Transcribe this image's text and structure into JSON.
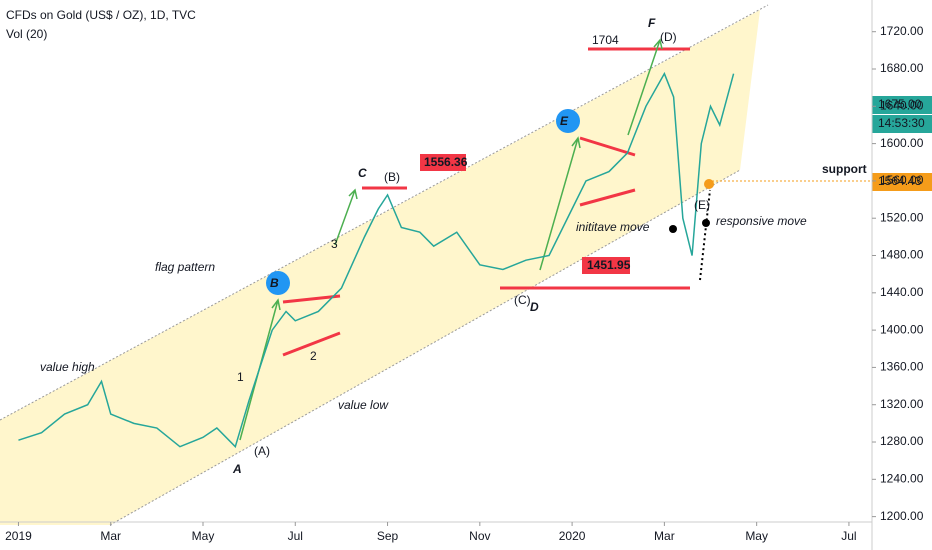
{
  "chart_data": {
    "type": "line",
    "title": "CFDs on Gold (US$ / OZ), 1D, TVC",
    "subtitle": "Vol (20)",
    "x": [
      0,
      0.5,
      1,
      1.5,
      1.8,
      2,
      2.5,
      3,
      3.5,
      4,
      4.3,
      4.7,
      5,
      5.5,
      5.8,
      6,
      6.5,
      7,
      7.5,
      7.8,
      8,
      8.3,
      8.7,
      9,
      9.5,
      10,
      10.5,
      11,
      11.5,
      12,
      12.3,
      12.8,
      13.2,
      13.6,
      14,
      14.2,
      14.4,
      14.6,
      14.8,
      15,
      15.2,
      15.5
    ],
    "series": [
      {
        "color": "#26a69a",
        "values": [
          1282,
          1290,
          1310,
          1320,
          1345,
          1310,
          1300,
          1295,
          1275,
          1285,
          1295,
          1275,
          1325,
          1400,
          1420,
          1410,
          1420,
          1445,
          1500,
          1530,
          1545,
          1510,
          1505,
          1490,
          1505,
          1470,
          1465,
          1475,
          1480,
          1530,
          1560,
          1570,
          1590,
          1640,
          1675,
          1650,
          1520,
          1480,
          1600,
          1640,
          1620,
          1675
        ]
      }
    ],
    "xlim": [
      -0.4,
      18.5
    ],
    "xticks": [
      {
        "value": 0,
        "label": "2019"
      },
      {
        "value": 2,
        "label": "Mar"
      },
      {
        "value": 4,
        "label": "May"
      },
      {
        "value": 6,
        "label": "Jul"
      },
      {
        "value": 8,
        "label": "Sep"
      },
      {
        "value": 10,
        "label": "Nov"
      },
      {
        "value": 12,
        "label": "2020"
      },
      {
        "value": 14,
        "label": "Mar"
      },
      {
        "value": 16,
        "label": "May"
      },
      {
        "value": 18,
        "label": "Jul"
      }
    ],
    "ylim": [
      1176,
      1754
    ],
    "yticks": [
      {
        "value": 1200,
        "label": "1200.00"
      },
      {
        "value": 1240,
        "label": "1240.00"
      },
      {
        "value": 1280,
        "label": "1280.00"
      },
      {
        "value": 1320,
        "label": "1320.00"
      },
      {
        "value": 1360,
        "label": "1360.00"
      },
      {
        "value": 1400,
        "label": "1400.00"
      },
      {
        "value": 1440,
        "label": "1440.00"
      },
      {
        "value": 1480,
        "label": "1480.00"
      },
      {
        "value": 1520,
        "label": "1520.00"
      },
      {
        "value": 1560,
        "label": "1560.00"
      },
      {
        "value": 1600,
        "label": "1600.00"
      },
      {
        "value": 1640,
        "label": "1640.00"
      },
      {
        "value": 1680,
        "label": "1680.00"
      },
      {
        "value": 1720,
        "label": "1720.00"
      }
    ],
    "annotations": [
      "flag pattern",
      "value high",
      "value low",
      "A",
      "B",
      "C",
      "D",
      "E",
      "F",
      "(A)",
      "(B)",
      "(C)",
      "(D)",
      "(E)",
      "1",
      "2",
      "3",
      "1704",
      "1556.36",
      "1451.95",
      "inititave move",
      "responsive move",
      "support",
      "1675.00",
      "14:53:30",
      "1564.43"
    ]
  }
}
